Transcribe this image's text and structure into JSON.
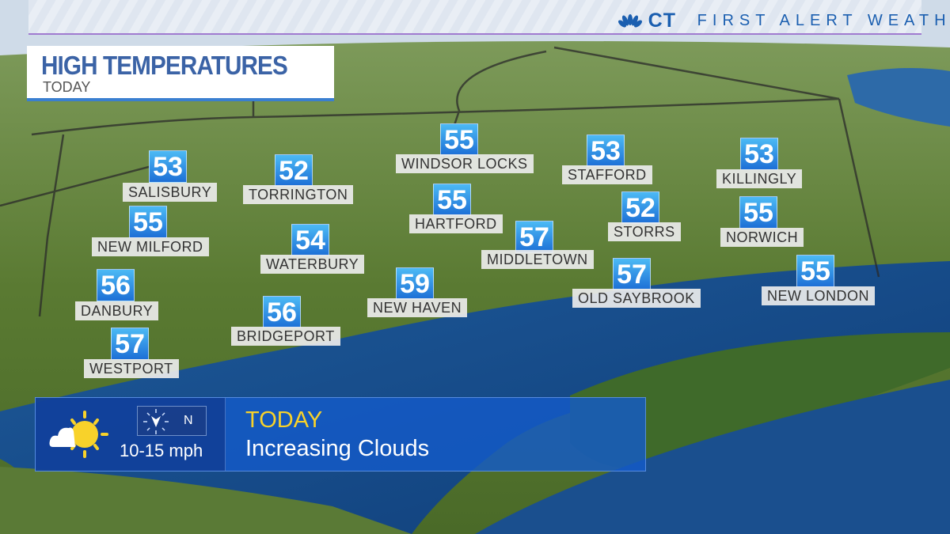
{
  "header": {
    "network_logo": "nbc-peacock",
    "station": "CT",
    "tagline": "FIRST ALERT WEATHER"
  },
  "title": {
    "main": "HIGH TEMPERATURES",
    "sub": "TODAY"
  },
  "cities": [
    {
      "name": "SALISBURY",
      "temp": "53"
    },
    {
      "name": "TORRINGTON",
      "temp": "52"
    },
    {
      "name": "WINDSOR LOCKS",
      "temp": "55"
    },
    {
      "name": "STAFFORD",
      "temp": "53"
    },
    {
      "name": "KILLINGLY",
      "temp": "53"
    },
    {
      "name": "NEW MILFORD",
      "temp": "55"
    },
    {
      "name": "HARTFORD",
      "temp": "55"
    },
    {
      "name": "STORRS",
      "temp": "52"
    },
    {
      "name": "NORWICH",
      "temp": "55"
    },
    {
      "name": "WATERBURY",
      "temp": "54"
    },
    {
      "name": "MIDDLETOWN",
      "temp": "57"
    },
    {
      "name": "DANBURY",
      "temp": "56"
    },
    {
      "name": "NEW HAVEN",
      "temp": "59"
    },
    {
      "name": "OLD SAYBROOK",
      "temp": "57"
    },
    {
      "name": "NEW LONDON",
      "temp": "55"
    },
    {
      "name": "BRIDGEPORT",
      "temp": "56"
    },
    {
      "name": "WESTPORT",
      "temp": "57"
    }
  ],
  "forecast": {
    "icon": "partly-cloudy-icon",
    "wind_direction": "N",
    "wind_speed": "10-15 mph",
    "period": "TODAY",
    "condition": "Increasing Clouds"
  },
  "colors": {
    "temp_box": "#2a8ae6",
    "accent_yellow": "#f8d22a",
    "brand_blue": "#1b5fb0"
  }
}
